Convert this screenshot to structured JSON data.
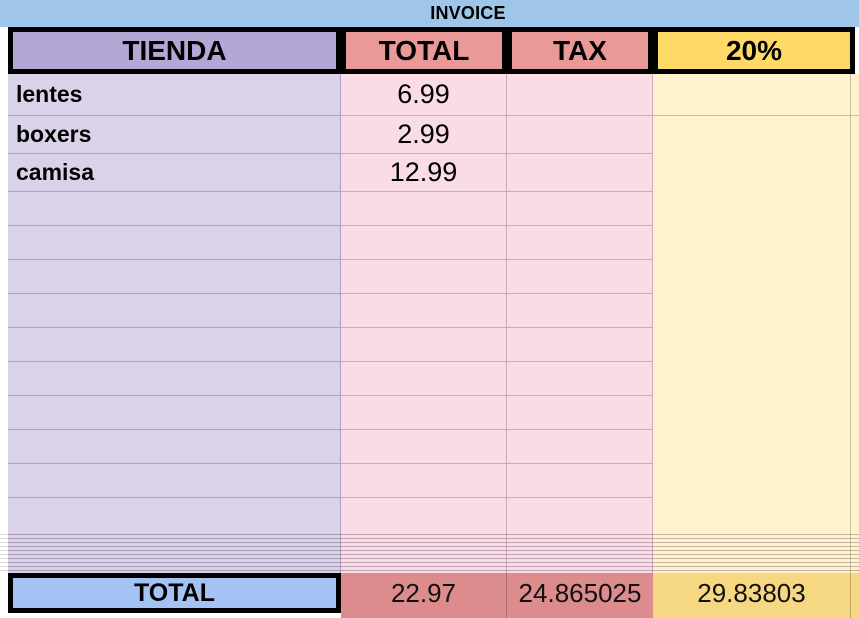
{
  "sheet_title": "INVOICE",
  "columns": {
    "tienda": "TIENDA",
    "total": "TOTAL",
    "tax": "TAX",
    "pct": "20%"
  },
  "items": [
    {
      "name": "lentes",
      "total": "6.99",
      "tax": "",
      "pct": ""
    },
    {
      "name": "boxers",
      "total": "2.99",
      "tax": "",
      "pct": ""
    },
    {
      "name": "camisa",
      "total": "12.99",
      "tax": "",
      "pct": ""
    }
  ],
  "empty_row_count": 10,
  "collapsed_rows_band": true,
  "footer": {
    "label": "TOTAL",
    "total": "22.97",
    "tax": "24.865025",
    "pct": "29.83803"
  },
  "colors": {
    "title_bar_blue": "#9FC5E8",
    "header_purple": "#B4A7D6",
    "header_red": "#EA9999",
    "header_yellow": "#FFD966",
    "cell_purple": "#D9D2E9",
    "cell_pink": "#FADCE7",
    "cell_yellow": "#FFF2CC",
    "footer_blue": "#A4C2F4",
    "footer_red": "#DC8C8C",
    "footer_yellow": "#F6D882",
    "border_black": "#000000"
  }
}
